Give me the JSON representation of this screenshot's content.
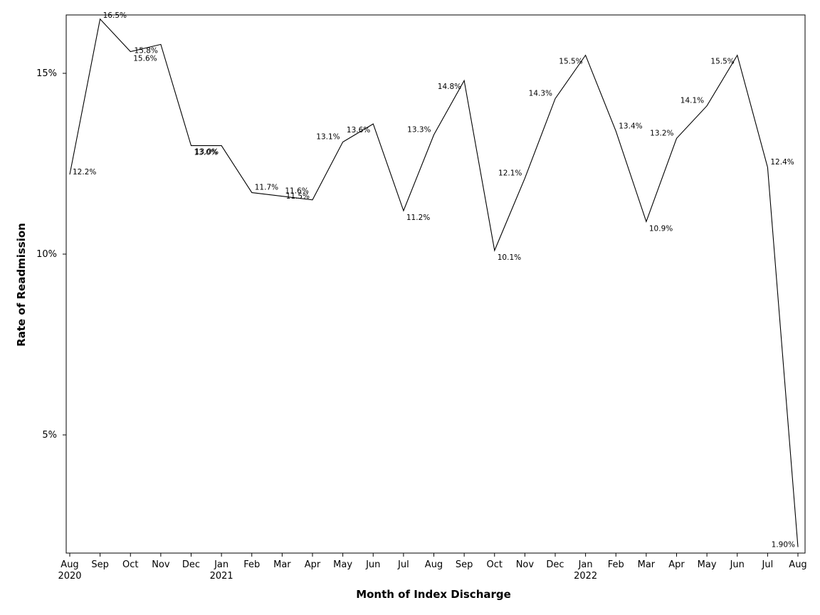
{
  "chart_data": {
    "type": "line",
    "xlabel": "Month of Index Discharge",
    "ylabel": "Rate of Readmission",
    "x": [
      "Aug 2020",
      "Sep 2020",
      "Oct 2020",
      "Nov 2020",
      "Dec 2020",
      "Jan 2021",
      "Feb 2021",
      "Mar 2021",
      "Apr 2021",
      "May 2021",
      "Jun 2021",
      "Jul 2021",
      "Aug 2021",
      "Sep 2021",
      "Oct 2021",
      "Nov 2021",
      "Dec 2021",
      "Jan 2022",
      "Feb 2022",
      "Mar 2022",
      "Apr 2022",
      "May 2022",
      "Jun 2022",
      "Jul 2022",
      "Aug 2022"
    ],
    "month_ticks": [
      "Aug",
      "Sep",
      "Oct",
      "Nov",
      "Dec",
      "Jan",
      "Feb",
      "Mar",
      "Apr",
      "May",
      "Jun",
      "Jul",
      "Aug",
      "Sep",
      "Oct",
      "Nov",
      "Dec",
      "Jan",
      "Feb",
      "Mar",
      "Apr",
      "May",
      "Jun",
      "Jul",
      "Aug"
    ],
    "year_ticks": [
      {
        "index": 0,
        "label": "2020"
      },
      {
        "index": 5,
        "label": "2021"
      },
      {
        "index": 17,
        "label": "2022"
      }
    ],
    "values": [
      12.2,
      16.5,
      15.6,
      15.8,
      13.0,
      13.0,
      11.7,
      11.6,
      11.5,
      13.1,
      13.6,
      11.2,
      13.3,
      14.8,
      10.1,
      12.1,
      14.3,
      15.5,
      13.4,
      10.9,
      13.2,
      14.1,
      15.5,
      12.4,
      1.9
    ],
    "data_labels": [
      "12.2%",
      "16.5%",
      "15.6%",
      "15.8%",
      "13.0%",
      "13.0%",
      "11.7%",
      "11.6%",
      "11.5%",
      "13.1%",
      "13.6%",
      "11.2%",
      "13.3%",
      "14.8%",
      "10.1%",
      "12.1%",
      "14.3%",
      "15.5%",
      "13.4%",
      "10.9%",
      "13.2%",
      "14.1%",
      "15.5%",
      "12.4%",
      "1.90%"
    ],
    "y_ticks": [
      {
        "value": 5,
        "label": "5%"
      },
      {
        "value": 10,
        "label": "10%"
      },
      {
        "value": 15,
        "label": "15%"
      }
    ],
    "ylim": [
      1.8,
      16.6
    ],
    "grid": false,
    "legend": "none",
    "line_color": "#000000"
  }
}
